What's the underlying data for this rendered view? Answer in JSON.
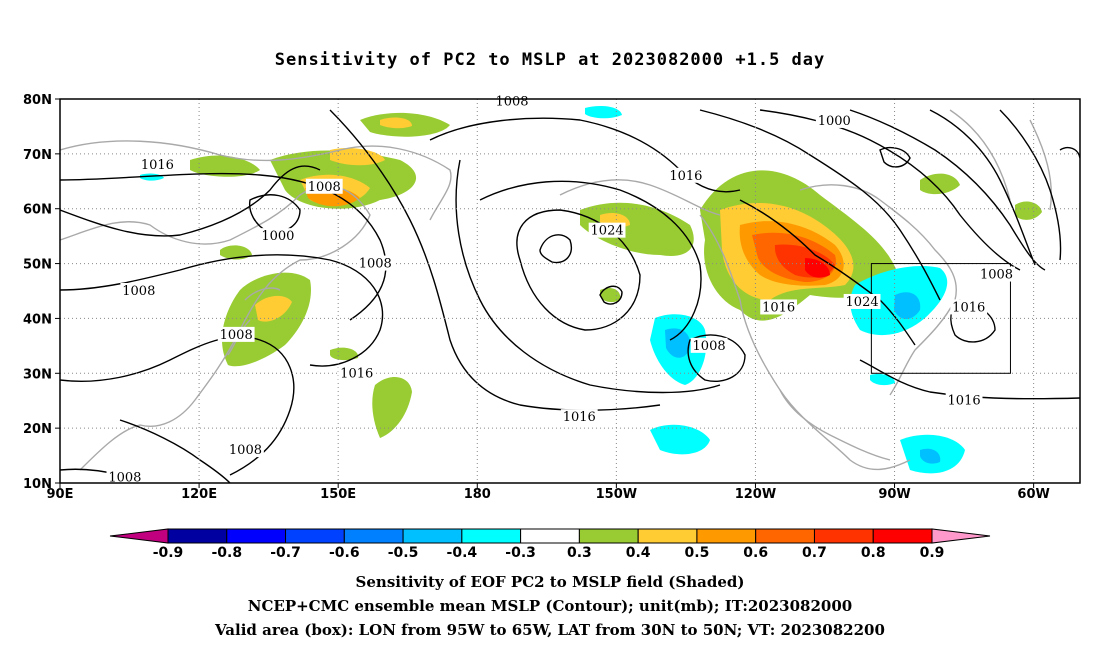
{
  "title": "Sensitivity of PC2 to MSLP at 2023082000 +1.5 day",
  "map": {
    "lon_labels": [
      "90E",
      "120E",
      "150E",
      "180",
      "150W",
      "120W",
      "90W",
      "60W"
    ],
    "lat_labels": [
      "80N",
      "70N",
      "60N",
      "50N",
      "40N",
      "30N",
      "20N",
      "10N"
    ],
    "lon_range": [
      90,
      310
    ],
    "lat_range": [
      10,
      80
    ],
    "valid_box": {
      "lon_min": 265,
      "lon_max": 295,
      "lat_min": 30,
      "lat_max": 50
    },
    "contour_labels": [
      {
        "text": "1008",
        "lon": 187.5,
        "lat": 79.5
      },
      {
        "text": "1000",
        "lon": 257,
        "lat": 76
      },
      {
        "text": "1016",
        "lon": 111,
        "lat": 68
      },
      {
        "text": "1008",
        "lon": 147,
        "lat": 64
      },
      {
        "text": "1016",
        "lon": 225,
        "lat": 66
      },
      {
        "text": "1024",
        "lon": 208,
        "lat": 56
      },
      {
        "text": "1000",
        "lon": 137,
        "lat": 55
      },
      {
        "text": "1008",
        "lon": 158,
        "lat": 50
      },
      {
        "text": "1008",
        "lon": 107,
        "lat": 45
      },
      {
        "text": "1016",
        "lon": 245,
        "lat": 42
      },
      {
        "text": "1024",
        "lon": 263,
        "lat": 43
      },
      {
        "text": "1008",
        "lon": 292,
        "lat": 48
      },
      {
        "text": "1016",
        "lon": 286,
        "lat": 42
      },
      {
        "text": "1008",
        "lon": 128,
        "lat": 37
      },
      {
        "text": "1008",
        "lon": 230,
        "lat": 35
      },
      {
        "text": "1016",
        "lon": 154,
        "lat": 30
      },
      {
        "text": "1016",
        "lon": 285,
        "lat": 25
      },
      {
        "text": "1016",
        "lon": 202,
        "lat": 22
      },
      {
        "text": "1008",
        "lon": 130,
        "lat": 16
      },
      {
        "text": "1008",
        "lon": 104,
        "lat": 11
      }
    ]
  },
  "colorbar": {
    "labels": [
      "-0.9",
      "-0.8",
      "-0.7",
      "-0.6",
      "-0.5",
      "-0.4",
      "-0.3",
      "0.3",
      "0.4",
      "0.5",
      "0.6",
      "0.7",
      "0.8",
      "0.9"
    ],
    "colors": [
      "#0000a0",
      "#0000ff",
      "#0040ff",
      "#0080ff",
      "#00c0ff",
      "#00ffff",
      "#ffffff",
      "#99cc33",
      "#ffcc33",
      "#ff9900",
      "#ff6600",
      "#ff3300",
      "#ff0000"
    ],
    "low_end_color": "#c0007f",
    "high_end_color": "#ff99cc"
  },
  "captions": {
    "line1": "Sensitivity of EOF PC2 to MSLP field (Shaded)",
    "line2": "NCEP+CMC ensemble mean MSLP (Contour); unit(mb); IT:2023082000",
    "line3": "Valid area (box): LON from 95W to 65W, LAT from 30N to 50N; VT: 2023082200"
  }
}
